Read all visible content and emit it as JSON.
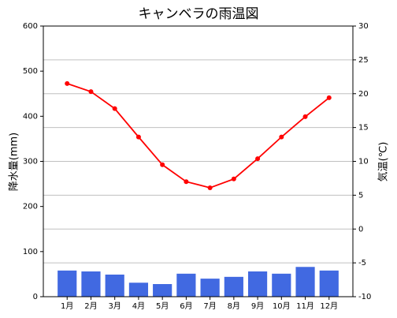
{
  "chart_data": {
    "type": "bar-line",
    "title": "キャンベラの雨温図",
    "categories": [
      "1月",
      "2月",
      "3月",
      "4月",
      "5月",
      "6月",
      "7月",
      "8月",
      "9月",
      "10月",
      "11月",
      "12月"
    ],
    "series": [
      {
        "name": "降水量",
        "type": "bar",
        "color": "#4169e1",
        "values": [
          58,
          56,
          49,
          31,
          28,
          51,
          40,
          44,
          56,
          51,
          66,
          58
        ]
      },
      {
        "name": "気温",
        "type": "line",
        "axis": "y2",
        "color": "#ff0000",
        "values": [
          21.5,
          20.3,
          17.8,
          13.6,
          9.5,
          7.0,
          6.1,
          7.4,
          10.4,
          13.6,
          16.6,
          19.4
        ]
      }
    ],
    "ylabel": "降水量(mm)",
    "y2label": "気温(℃)",
    "ylim": [
      0,
      600
    ],
    "yticks": [
      0,
      100,
      200,
      300,
      400,
      500,
      600
    ],
    "y2lim": [
      -10,
      30
    ],
    "y2ticks": [
      -10,
      -5,
      0,
      5,
      10,
      15,
      20,
      25,
      30
    ],
    "grid": "y2"
  }
}
